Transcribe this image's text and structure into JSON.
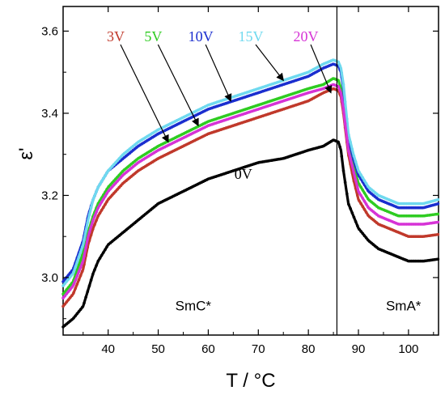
{
  "chart_data": {
    "type": "scatter",
    "title": "",
    "xlabel": "T / °C",
    "ylabel": "ε'",
    "xlim": [
      31,
      106
    ],
    "ylim": [
      2.86,
      3.66
    ],
    "xticks": [
      40,
      50,
      60,
      70,
      80,
      90,
      100
    ],
    "yticks": [
      3.0,
      3.2,
      3.4,
      3.6
    ],
    "xtick_labels": [
      "40",
      "50",
      "60",
      "70",
      "80",
      "90",
      "100"
    ],
    "ytick_labels": [
      "3.0",
      "3.2",
      "3.4",
      "3.6"
    ],
    "grid": false,
    "transition_line_x": 85.7,
    "phase_labels": [
      {
        "text": "SmC*",
        "x": 57,
        "y": 2.92
      },
      {
        "text": "SmA*",
        "x": 99,
        "y": 2.92
      }
    ],
    "series": [
      {
        "name": "0V",
        "color": "#000000",
        "x": [
          31,
          33,
          35,
          36,
          37,
          38,
          40,
          43,
          46,
          50,
          55,
          60,
          65,
          70,
          75,
          80,
          83,
          85,
          86,
          86.5,
          87,
          87.5,
          88,
          89,
          90,
          92,
          94,
          96,
          98,
          100,
          103,
          106
        ],
        "y": [
          2.88,
          2.9,
          2.93,
          2.97,
          3.01,
          3.04,
          3.08,
          3.11,
          3.14,
          3.18,
          3.21,
          3.24,
          3.26,
          3.28,
          3.29,
          3.31,
          3.32,
          3.335,
          3.33,
          3.31,
          3.26,
          3.22,
          3.18,
          3.15,
          3.12,
          3.09,
          3.07,
          3.06,
          3.05,
          3.04,
          3.04,
          3.045
        ]
      },
      {
        "name": "3V",
        "color": "#c0392b",
        "x": [
          31,
          33,
          35,
          36,
          37,
          38,
          40,
          43,
          46,
          50,
          55,
          60,
          65,
          70,
          75,
          80,
          83,
          85,
          86,
          86.5,
          87,
          87.5,
          88,
          89,
          90,
          92,
          94,
          96,
          98,
          100,
          103,
          106
        ],
        "y": [
          2.93,
          2.96,
          3.02,
          3.08,
          3.12,
          3.15,
          3.19,
          3.23,
          3.26,
          3.29,
          3.32,
          3.35,
          3.37,
          3.39,
          3.41,
          3.43,
          3.45,
          3.46,
          3.455,
          3.44,
          3.4,
          3.35,
          3.3,
          3.24,
          3.19,
          3.15,
          3.13,
          3.12,
          3.11,
          3.1,
          3.1,
          3.105
        ]
      },
      {
        "name": "5V",
        "color": "#2ecc21",
        "x": [
          31,
          33,
          35,
          36,
          37,
          38,
          40,
          43,
          46,
          50,
          55,
          60,
          65,
          70,
          75,
          80,
          83,
          85,
          86,
          86.5,
          87,
          87.5,
          88,
          89,
          90,
          92,
          94,
          96,
          98,
          100,
          103,
          106
        ],
        "y": [
          2.96,
          2.99,
          3.06,
          3.11,
          3.15,
          3.18,
          3.22,
          3.26,
          3.29,
          3.32,
          3.35,
          3.38,
          3.4,
          3.42,
          3.44,
          3.46,
          3.47,
          3.485,
          3.48,
          3.46,
          3.42,
          3.37,
          3.32,
          3.27,
          3.23,
          3.19,
          3.17,
          3.16,
          3.15,
          3.15,
          3.15,
          3.155
        ]
      },
      {
        "name": "10V",
        "color": "#1a2ecf",
        "x": [
          31,
          33,
          35,
          36,
          37,
          38,
          40,
          43,
          46,
          50,
          55,
          60,
          65,
          70,
          75,
          80,
          83,
          85,
          86,
          86.5,
          87,
          87.5,
          88,
          89,
          90,
          92,
          94,
          96,
          98,
          100,
          103,
          106
        ],
        "y": [
          2.99,
          3.02,
          3.09,
          3.15,
          3.19,
          3.22,
          3.26,
          3.29,
          3.32,
          3.35,
          3.38,
          3.41,
          3.43,
          3.45,
          3.47,
          3.49,
          3.51,
          3.52,
          3.515,
          3.5,
          3.46,
          3.4,
          3.34,
          3.29,
          3.25,
          3.21,
          3.19,
          3.18,
          3.17,
          3.17,
          3.17,
          3.18
        ]
      },
      {
        "name": "15V",
        "color": "#6fd9ef",
        "x": [
          31,
          33,
          35,
          36,
          37,
          38,
          40,
          43,
          46,
          50,
          55,
          60,
          65,
          70,
          75,
          80,
          83,
          85,
          86,
          86.5,
          87,
          87.5,
          88,
          89,
          90,
          92,
          94,
          96,
          98,
          100,
          103,
          106
        ],
        "y": [
          2.98,
          3.01,
          3.08,
          3.14,
          3.19,
          3.22,
          3.26,
          3.3,
          3.33,
          3.36,
          3.39,
          3.42,
          3.44,
          3.46,
          3.48,
          3.5,
          3.52,
          3.53,
          3.525,
          3.51,
          3.47,
          3.41,
          3.35,
          3.3,
          3.26,
          3.22,
          3.2,
          3.19,
          3.18,
          3.18,
          3.18,
          3.19
        ]
      },
      {
        "name": "20V",
        "color": "#d633d6",
        "x": [
          31,
          33,
          35,
          36,
          37,
          38,
          40,
          43,
          46,
          50,
          55,
          60,
          65,
          70,
          75,
          80,
          83,
          85,
          86,
          86.5,
          87,
          87.5,
          88,
          89,
          90,
          92,
          94,
          96,
          98,
          100,
          103,
          106
        ],
        "y": [
          2.95,
          2.98,
          3.04,
          3.1,
          3.14,
          3.17,
          3.21,
          3.25,
          3.28,
          3.31,
          3.34,
          3.37,
          3.39,
          3.41,
          3.43,
          3.45,
          3.46,
          3.47,
          3.465,
          3.45,
          3.41,
          3.36,
          3.31,
          3.26,
          3.21,
          3.17,
          3.15,
          3.14,
          3.13,
          3.13,
          3.13,
          3.135
        ]
      }
    ],
    "annotations": [
      {
        "text": "3V",
        "color": "#c0392b",
        "text_x": 41.5,
        "text_y": 3.575,
        "arrow_to_x": 52.0,
        "arrow_to_y": 3.33
      },
      {
        "text": "5V",
        "color": "#2ecc21",
        "text_x": 49.0,
        "text_y": 3.575,
        "arrow_to_x": 58.0,
        "arrow_to_y": 3.37
      },
      {
        "text": "10V",
        "color": "#1a2ecf",
        "text_x": 58.5,
        "text_y": 3.575,
        "arrow_to_x": 64.5,
        "arrow_to_y": 3.43
      },
      {
        "text": "15V",
        "color": "#6fd9ef",
        "text_x": 68.5,
        "text_y": 3.575,
        "arrow_to_x": 75.0,
        "arrow_to_y": 3.48
      },
      {
        "text": "20V",
        "color": "#d633d6",
        "text_x": 79.5,
        "text_y": 3.575,
        "arrow_to_x": 84.5,
        "arrow_to_y": 3.45
      },
      {
        "text": "0V",
        "color": "#000000",
        "text_x": 67.0,
        "text_y": 3.24,
        "arrow_to_x": null,
        "arrow_to_y": null
      }
    ]
  }
}
